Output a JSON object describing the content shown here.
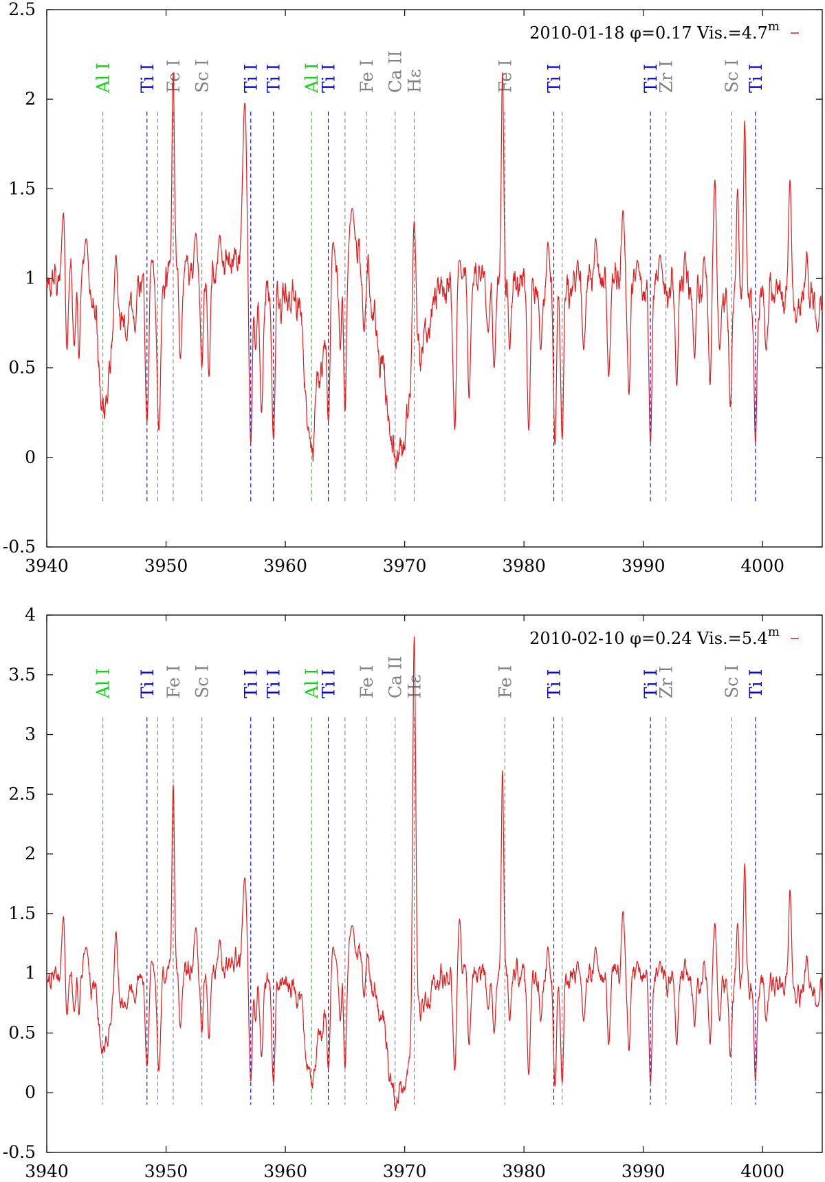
{
  "colors": {
    "spectrum": "#e41a1c",
    "axis": "#000000",
    "ti": "#0000ff",
    "al": "#00dd00",
    "gray": "#808080"
  },
  "chart_data": [
    {
      "type": "line",
      "legend": "2010-01-18 φ=0.17 Vis.=4.7",
      "legend_superscript": "m",
      "legend_placement": "top-right",
      "xlim": [
        3940,
        4005
      ],
      "ylim": [
        -0.5,
        2.5
      ],
      "xticks": [
        3940,
        3950,
        3960,
        3970,
        3980,
        3990,
        4000
      ],
      "yticks": [
        -0.5,
        0,
        0.5,
        1,
        1.5,
        2,
        2.5
      ],
      "line_bottom": -0.25,
      "lines": [
        {
          "x": 3944.7,
          "label": "Al I",
          "color": "green"
        },
        {
          "x": 3948.4,
          "label": "Ti I",
          "color": "blue"
        },
        {
          "x": 3949.3,
          "label": "",
          "color": "gray"
        },
        {
          "x": 3950.6,
          "label": "Fe I",
          "color": "gray"
        },
        {
          "x": 3953.0,
          "label": "Sc I",
          "color": "gray"
        },
        {
          "x": 3957.1,
          "label": "Ti I",
          "color": "blue"
        },
        {
          "x": 3959.0,
          "label": "Ti I",
          "color": "blue"
        },
        {
          "x": 3962.2,
          "label": "Al I",
          "color": "green"
        },
        {
          "x": 3963.6,
          "label": "Ti I",
          "color": "blue"
        },
        {
          "x": 3965.0,
          "label": "",
          "color": "gray"
        },
        {
          "x": 3966.8,
          "label": "Fe I",
          "color": "gray"
        },
        {
          "x": 3969.2,
          "label": "Ca II",
          "color": "gray"
        },
        {
          "x": 3970.8,
          "label": "Hε",
          "color": "gray"
        },
        {
          "x": 3978.4,
          "label": "Fe I",
          "color": "gray"
        },
        {
          "x": 3982.5,
          "label": "Ti I",
          "color": "blue"
        },
        {
          "x": 3983.2,
          "label": "",
          "color": "gray"
        },
        {
          "x": 3990.6,
          "label": "Ti I",
          "color": "blue"
        },
        {
          "x": 3991.9,
          "label": "Zr I",
          "color": "gray"
        },
        {
          "x": 3997.4,
          "label": "Sc I",
          "color": "gray"
        },
        {
          "x": 3999.4,
          "label": "Ti I",
          "color": "blue"
        }
      ],
      "continuum": [
        [
          3940,
          0.95
        ],
        [
          3942,
          1.05
        ],
        [
          3943,
          1.05
        ],
        [
          3944,
          0.85
        ],
        [
          3944.7,
          0.24
        ],
        [
          3945.5,
          0.55
        ],
        [
          3947,
          0.9
        ],
        [
          3948,
          1.02
        ],
        [
          3952,
          1.05
        ],
        [
          3955,
          1.05
        ],
        [
          3956,
          1.1
        ],
        [
          3957,
          0.95
        ],
        [
          3958,
          0.95
        ],
        [
          3959.5,
          0.92
        ],
        [
          3961,
          0.88
        ],
        [
          3962.2,
          0.07
        ],
        [
          3962.8,
          0.42
        ],
        [
          3964,
          1.05
        ],
        [
          3966,
          1.15
        ],
        [
          3966.8,
          1.05
        ],
        [
          3967.3,
          0.82
        ],
        [
          3968,
          0.52
        ],
        [
          3969.2,
          0.02
        ],
        [
          3969.8,
          0.05
        ],
        [
          3970.2,
          0.2
        ],
        [
          3971.2,
          0.6
        ],
        [
          3972,
          0.75
        ],
        [
          3973,
          0.95
        ],
        [
          3975,
          1.0
        ],
        [
          3978,
          0.98
        ],
        [
          3980,
          0.97
        ],
        [
          3984,
          0.95
        ],
        [
          3988,
          1.0
        ],
        [
          3992,
          0.95
        ],
        [
          3996,
          0.9
        ],
        [
          4000,
          0.9
        ],
        [
          4005,
          0.85
        ]
      ],
      "features": [
        [
          3941.4,
          1.37,
          0.12
        ],
        [
          3941.7,
          0.6,
          0.1
        ],
        [
          3942.3,
          0.62,
          0.12
        ],
        [
          3942.7,
          0.55,
          0.1
        ],
        [
          3943.3,
          1.22,
          0.15
        ],
        [
          3945.8,
          1.13,
          0.15
        ],
        [
          3946.7,
          0.65,
          0.12
        ],
        [
          3947.4,
          0.7,
          0.12
        ],
        [
          3948.4,
          0.2,
          0.15
        ],
        [
          3948.8,
          1.1,
          0.1
        ],
        [
          3949.4,
          0.15,
          0.15
        ],
        [
          3950.6,
          2.15,
          0.1
        ],
        [
          3951.2,
          0.55,
          0.12
        ],
        [
          3952.5,
          1.25,
          0.12
        ],
        [
          3953.0,
          0.5,
          0.12
        ],
        [
          3953.6,
          0.45,
          0.12
        ],
        [
          3954.5,
          1.24,
          0.12
        ],
        [
          3956.6,
          1.98,
          0.18
        ],
        [
          3957.1,
          0.08,
          0.13
        ],
        [
          3957.5,
          0.6,
          0.1
        ],
        [
          3958.0,
          0.25,
          0.13
        ],
        [
          3959.0,
          0.1,
          0.13
        ],
        [
          3963.6,
          0.2,
          0.13
        ],
        [
          3964.0,
          1.2,
          0.1
        ],
        [
          3964.6,
          0.6,
          0.1
        ],
        [
          3965.0,
          0.25,
          0.12
        ],
        [
          3965.6,
          1.39,
          0.18
        ],
        [
          3966.6,
          0.7,
          0.12
        ],
        [
          3970.8,
          1.32,
          0.15
        ],
        [
          3974.2,
          0.15,
          0.14
        ],
        [
          3974.6,
          1.1,
          0.12
        ],
        [
          3975.4,
          0.33,
          0.12
        ],
        [
          3977.0,
          0.7,
          0.12
        ],
        [
          3977.5,
          0.5,
          0.12
        ],
        [
          3978.2,
          2.15,
          0.1
        ],
        [
          3978.8,
          0.6,
          0.1
        ],
        [
          3980.4,
          0.15,
          0.13
        ],
        [
          3981.4,
          0.6,
          0.12
        ],
        [
          3982.0,
          1.2,
          0.1
        ],
        [
          3982.6,
          0.07,
          0.12
        ],
        [
          3983.2,
          0.1,
          0.12
        ],
        [
          3984.5,
          1.1,
          0.12
        ],
        [
          3985.0,
          0.6,
          0.12
        ],
        [
          3986.0,
          1.22,
          0.12
        ],
        [
          3987.1,
          0.45,
          0.12
        ],
        [
          3988.3,
          1.38,
          0.12
        ],
        [
          3988.8,
          0.35,
          0.12
        ],
        [
          3989.5,
          1.1,
          0.1
        ],
        [
          3990.6,
          0.08,
          0.12
        ],
        [
          3991.4,
          1.13,
          0.12
        ],
        [
          3992.8,
          0.4,
          0.12
        ],
        [
          3993.5,
          1.15,
          0.1
        ],
        [
          3994.3,
          0.55,
          0.1
        ],
        [
          3995.1,
          1.12,
          0.1
        ],
        [
          3995.6,
          0.4,
          0.1
        ],
        [
          3996.0,
          1.55,
          0.12
        ],
        [
          3996.4,
          0.6,
          0.1
        ],
        [
          3997.3,
          0.28,
          0.12
        ],
        [
          3997.9,
          1.5,
          0.1
        ],
        [
          3998.5,
          1.88,
          0.1
        ],
        [
          3999.4,
          0.08,
          0.12
        ],
        [
          4000.3,
          0.6,
          0.12
        ],
        [
          4002.3,
          1.55,
          0.12
        ],
        [
          4002.8,
          0.75,
          0.1
        ],
        [
          4003.7,
          1.15,
          0.1
        ],
        [
          4004.6,
          0.7,
          0.12
        ]
      ]
    },
    {
      "type": "line",
      "legend": "2010-02-10 φ=0.24 Vis.=5.4",
      "legend_superscript": "m",
      "legend_placement": "top-right",
      "xlim": [
        3940,
        4005
      ],
      "ylim": [
        -0.5,
        4
      ],
      "xticks": [
        3940,
        3950,
        3960,
        3970,
        3980,
        3990,
        4000
      ],
      "yticks": [
        -0.5,
        0,
        0.5,
        1,
        1.5,
        2,
        2.5,
        3,
        3.5,
        4
      ],
      "line_bottom": -0.1,
      "lines": [
        {
          "x": 3944.7,
          "label": "Al I",
          "color": "green"
        },
        {
          "x": 3948.4,
          "label": "Ti I",
          "color": "blue"
        },
        {
          "x": 3949.3,
          "label": "",
          "color": "gray"
        },
        {
          "x": 3950.6,
          "label": "Fe I",
          "color": "gray"
        },
        {
          "x": 3953.0,
          "label": "Sc I",
          "color": "gray"
        },
        {
          "x": 3957.1,
          "label": "Ti I",
          "color": "blue"
        },
        {
          "x": 3959.0,
          "label": "Ti I",
          "color": "blue"
        },
        {
          "x": 3962.2,
          "label": "Al I",
          "color": "green"
        },
        {
          "x": 3963.6,
          "label": "Ti I",
          "color": "blue"
        },
        {
          "x": 3965.0,
          "label": "",
          "color": "gray"
        },
        {
          "x": 3966.8,
          "label": "Fe I",
          "color": "gray"
        },
        {
          "x": 3969.2,
          "label": "Ca II",
          "color": "gray"
        },
        {
          "x": 3970.8,
          "label": "Hε",
          "color": "gray"
        },
        {
          "x": 3978.4,
          "label": "Fe I",
          "color": "gray"
        },
        {
          "x": 3982.5,
          "label": "Ti I",
          "color": "blue"
        },
        {
          "x": 3983.2,
          "label": "",
          "color": "gray"
        },
        {
          "x": 3990.6,
          "label": "Ti I",
          "color": "blue"
        },
        {
          "x": 3991.9,
          "label": "Zr I",
          "color": "gray"
        },
        {
          "x": 3997.4,
          "label": "Sc I",
          "color": "gray"
        },
        {
          "x": 3999.4,
          "label": "Ti I",
          "color": "blue"
        }
      ],
      "continuum": [
        [
          3940,
          0.95
        ],
        [
          3942,
          1.0
        ],
        [
          3943,
          1.05
        ],
        [
          3944,
          0.85
        ],
        [
          3944.7,
          0.32
        ],
        [
          3945.5,
          0.6
        ],
        [
          3947,
          0.9
        ],
        [
          3948,
          1.0
        ],
        [
          3952,
          1.05
        ],
        [
          3955,
          1.05
        ],
        [
          3956,
          1.1
        ],
        [
          3957,
          0.95
        ],
        [
          3958,
          0.95
        ],
        [
          3959.5,
          0.92
        ],
        [
          3961,
          0.85
        ],
        [
          3962.2,
          0.08
        ],
        [
          3962.8,
          0.45
        ],
        [
          3964,
          1.05
        ],
        [
          3966,
          1.15
        ],
        [
          3966.8,
          1.15
        ],
        [
          3967.3,
          0.9
        ],
        [
          3968,
          0.65
        ],
        [
          3969.2,
          -0.05
        ],
        [
          3969.8,
          0.02
        ],
        [
          3970.3,
          0.2
        ],
        [
          3971.2,
          0.7
        ],
        [
          3972,
          0.82
        ],
        [
          3973,
          0.95
        ],
        [
          3975,
          1.0
        ],
        [
          3978,
          0.98
        ],
        [
          3980,
          0.98
        ],
        [
          3984,
          0.96
        ],
        [
          3988,
          1.0
        ],
        [
          3992,
          0.95
        ],
        [
          3996,
          0.9
        ],
        [
          4000,
          0.92
        ],
        [
          4005,
          0.85
        ]
      ],
      "features": [
        [
          3941.4,
          1.48,
          0.12
        ],
        [
          3941.7,
          0.65,
          0.1
        ],
        [
          3942.3,
          0.68,
          0.12
        ],
        [
          3942.7,
          0.65,
          0.1
        ],
        [
          3943.3,
          1.22,
          0.15
        ],
        [
          3945.8,
          1.35,
          0.15
        ],
        [
          3946.7,
          0.7,
          0.12
        ],
        [
          3947.4,
          0.75,
          0.12
        ],
        [
          3948.4,
          0.22,
          0.15
        ],
        [
          3948.8,
          1.1,
          0.1
        ],
        [
          3949.4,
          0.18,
          0.15
        ],
        [
          3950.6,
          2.58,
          0.1
        ],
        [
          3951.2,
          0.55,
          0.12
        ],
        [
          3952.5,
          1.38,
          0.12
        ],
        [
          3953.0,
          0.5,
          0.12
        ],
        [
          3953.6,
          0.45,
          0.12
        ],
        [
          3954.5,
          1.28,
          0.12
        ],
        [
          3956.6,
          1.8,
          0.18
        ],
        [
          3957.1,
          0.1,
          0.13
        ],
        [
          3957.5,
          0.6,
          0.1
        ],
        [
          3958.0,
          0.3,
          0.13
        ],
        [
          3959.0,
          0.08,
          0.13
        ],
        [
          3963.6,
          0.2,
          0.13
        ],
        [
          3964.0,
          1.22,
          0.1
        ],
        [
          3964.6,
          0.6,
          0.1
        ],
        [
          3965.0,
          0.2,
          0.12
        ],
        [
          3965.6,
          1.4,
          0.18
        ],
        [
          3966.6,
          0.8,
          0.12
        ],
        [
          3970.8,
          3.82,
          0.13
        ],
        [
          3974.2,
          0.18,
          0.14
        ],
        [
          3974.6,
          1.45,
          0.12
        ],
        [
          3975.4,
          0.4,
          0.12
        ],
        [
          3977.0,
          0.7,
          0.12
        ],
        [
          3977.5,
          0.5,
          0.12
        ],
        [
          3978.2,
          2.7,
          0.1
        ],
        [
          3978.8,
          0.6,
          0.1
        ],
        [
          3980.4,
          0.15,
          0.13
        ],
        [
          3981.4,
          0.6,
          0.12
        ],
        [
          3982.0,
          1.22,
          0.1
        ],
        [
          3982.6,
          0.05,
          0.12
        ],
        [
          3983.2,
          0.08,
          0.12
        ],
        [
          3984.5,
          1.1,
          0.12
        ],
        [
          3985.0,
          0.6,
          0.12
        ],
        [
          3986.0,
          1.22,
          0.12
        ],
        [
          3987.1,
          0.4,
          0.12
        ],
        [
          3988.3,
          1.52,
          0.12
        ],
        [
          3988.8,
          0.35,
          0.12
        ],
        [
          3989.5,
          1.1,
          0.1
        ],
        [
          3990.6,
          0.08,
          0.12
        ],
        [
          3991.4,
          1.1,
          0.12
        ],
        [
          3992.8,
          0.4,
          0.12
        ],
        [
          3993.5,
          1.12,
          0.1
        ],
        [
          3994.3,
          0.55,
          0.1
        ],
        [
          3995.1,
          1.1,
          0.1
        ],
        [
          3995.6,
          0.4,
          0.1
        ],
        [
          3996.0,
          1.42,
          0.12
        ],
        [
          3996.4,
          0.6,
          0.1
        ],
        [
          3997.3,
          0.3,
          0.12
        ],
        [
          3997.9,
          1.42,
          0.1
        ],
        [
          3998.5,
          1.92,
          0.1
        ],
        [
          3999.4,
          0.1,
          0.12
        ],
        [
          4000.3,
          0.6,
          0.12
        ],
        [
          4002.3,
          1.7,
          0.12
        ],
        [
          4002.8,
          0.75,
          0.1
        ],
        [
          4003.7,
          1.15,
          0.1
        ],
        [
          4004.6,
          0.72,
          0.12
        ]
      ]
    }
  ]
}
